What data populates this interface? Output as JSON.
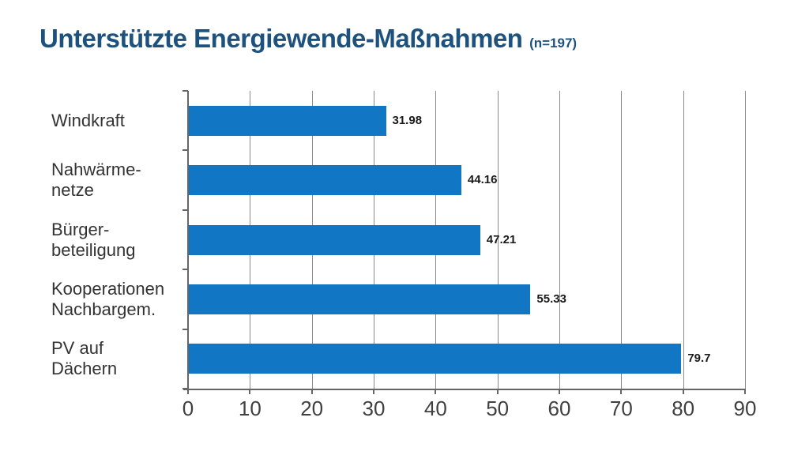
{
  "title": {
    "text": "Unterstützte Energiewende-Maßnahmen",
    "suffix": "(n=197)",
    "color": "#1E527E"
  },
  "chart_data": {
    "type": "bar",
    "orientation": "horizontal",
    "title": "Unterstützte Energiewende-Maßnahmen (n=197)",
    "n": 197,
    "categories": [
      [
        "Windkraft"
      ],
      [
        "Nahwärme-",
        "netze"
      ],
      [
        "Bürger-",
        "beteiligung"
      ],
      [
        "Kooperationen",
        "Nachbargem."
      ],
      [
        "PV auf",
        "Dächern"
      ]
    ],
    "values": [
      31.98,
      44.16,
      47.21,
      55.33,
      79.7
    ],
    "value_labels": [
      "31.98",
      "44.16",
      "47.21",
      "55.33",
      "79.7"
    ],
    "xlabel": "",
    "ylabel": "",
    "xlim": [
      0,
      90
    ],
    "x_ticks": [
      0,
      10,
      20,
      30,
      40,
      50,
      60,
      70,
      80,
      90
    ],
    "x_tick_labels": [
      "0",
      "10",
      "20",
      "30",
      "40",
      "50",
      "60",
      "70",
      "80",
      "90"
    ],
    "grid": true,
    "legend_position": "none",
    "bar_color": "#1176C4",
    "grid_color": "#8A8A8A",
    "axis_color": "#666666",
    "label_color": "#333333",
    "value_label_color": "#1A1A1A"
  }
}
